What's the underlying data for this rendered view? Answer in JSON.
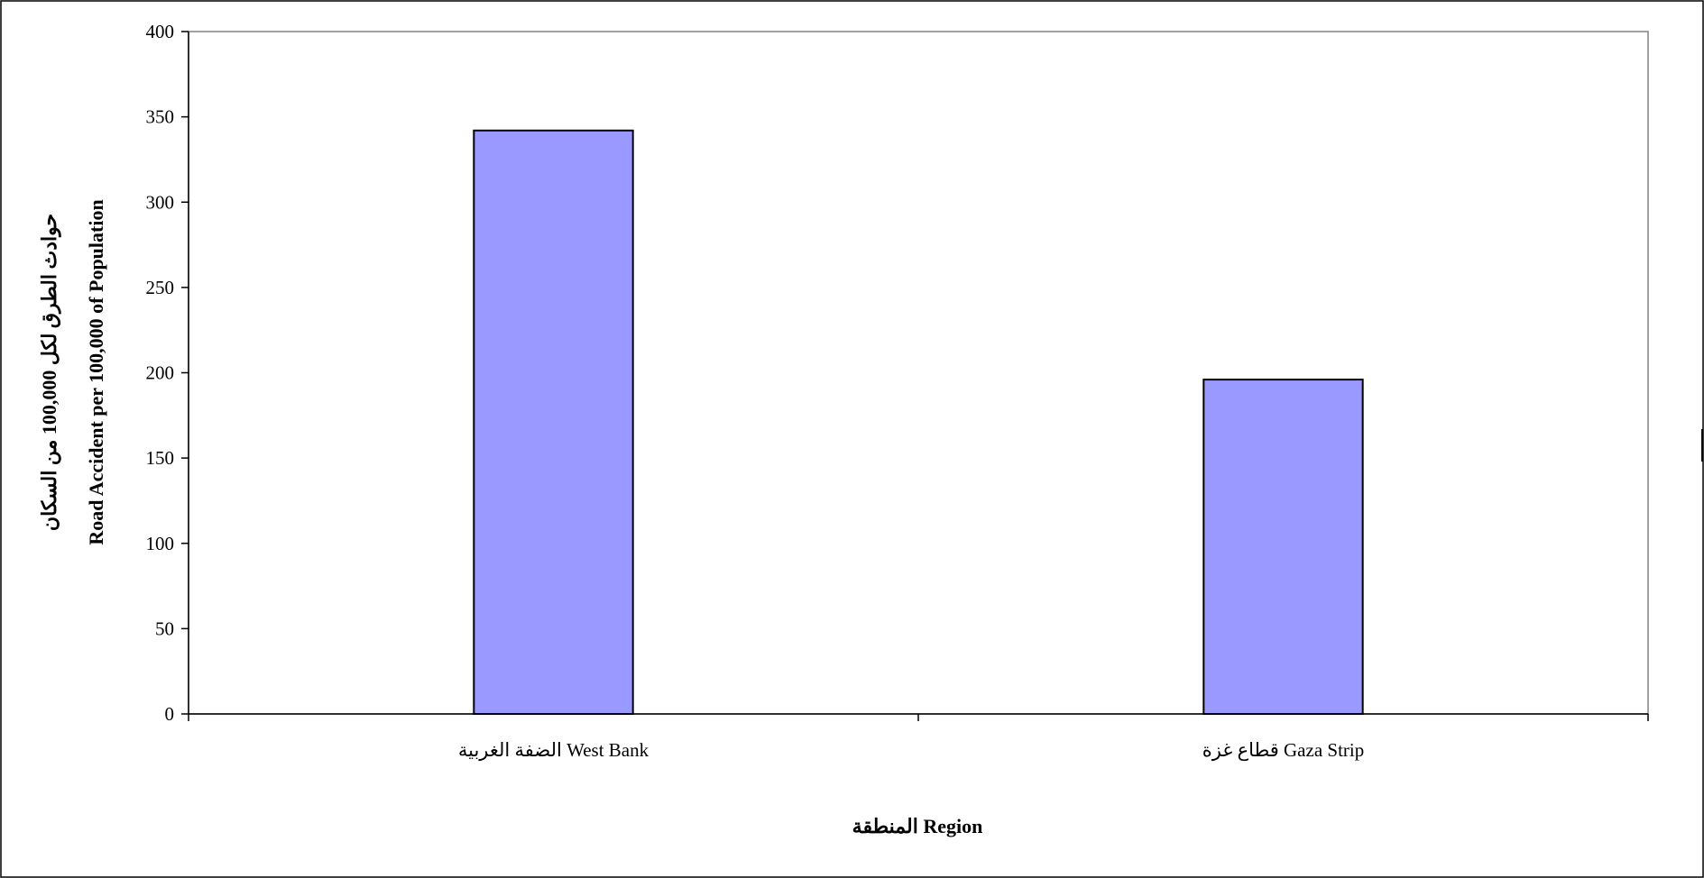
{
  "chart_data": {
    "type": "bar",
    "categories": [
      "الضفة الغربية West Bank",
      "قطاع غزة Gaza Strip"
    ],
    "values": [
      342,
      196
    ],
    "xlabel": "المنطقة Region",
    "ylabel_lines": [
      "حوادث الطرق لكل 100,000 من السكان",
      "Road Accident per 100,000 of Population"
    ],
    "ylim": [
      0,
      400
    ],
    "yticks": [
      0,
      50,
      100,
      150,
      200,
      250,
      300,
      350,
      400
    ],
    "grid": false,
    "legend": "none",
    "colors": {
      "bar_fill": "#9999ff",
      "bar_stroke": "#000000",
      "axis": "#000000",
      "plot_border": "#808080"
    }
  }
}
